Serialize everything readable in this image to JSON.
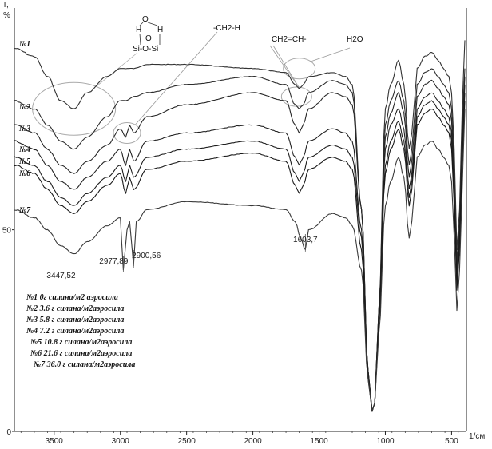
{
  "chart_data": {
    "type": "line",
    "title": "",
    "xlabel": "1/см",
    "ylabel": "T, %",
    "xlim": [
      3800,
      400
    ],
    "ylim": [
      0,
      105
    ],
    "y_ticks": [
      0,
      50
    ],
    "x_ticks": [
      3500,
      3000,
      2500,
      2000,
      1500,
      1000,
      500
    ],
    "grid": false,
    "series": [
      {
        "name": "№1",
        "x": [
          3800,
          3650,
          3550,
          3450,
          3350,
          3250,
          3100,
          3000,
          2960,
          2900,
          2800,
          2500,
          2000,
          1750,
          1680,
          1650,
          1620,
          1580,
          1400,
          1300,
          1250,
          1180,
          1130,
          1100,
          1080,
          1050,
          1000,
          960,
          900,
          860,
          820,
          800,
          780,
          760,
          700,
          650,
          600,
          560,
          520,
          500,
          480,
          460,
          440,
          420,
          400
        ],
        "y": [
          95,
          93,
          88,
          82,
          80,
          84,
          88,
          90,
          90,
          90,
          91,
          91,
          90,
          89,
          86,
          85,
          86,
          88,
          89,
          88,
          86,
          55,
          15,
          5,
          7,
          30,
          80,
          86,
          92,
          86,
          70,
          74,
          82,
          90,
          93,
          94,
          92,
          90,
          88,
          84,
          70,
          45,
          55,
          80,
          97
        ]
      },
      {
        "name": "№2",
        "x": [
          3800,
          3650,
          3550,
          3450,
          3350,
          3250,
          3100,
          3000,
          2960,
          2900,
          2800,
          2500,
          2000,
          1750,
          1680,
          1650,
          1620,
          1580,
          1400,
          1300,
          1250,
          1180,
          1130,
          1100,
          1080,
          1050,
          1000,
          960,
          900,
          860,
          820,
          800,
          780,
          760,
          700,
          650,
          600,
          560,
          520,
          500,
          480,
          460,
          440,
          420,
          400
        ],
        "y": [
          82,
          80,
          76,
          72,
          70,
          73,
          78,
          82,
          82,
          83,
          84,
          86,
          88,
          86,
          81,
          80,
          81,
          84,
          87,
          86,
          84,
          55,
          15,
          5,
          7,
          30,
          76,
          82,
          87,
          82,
          66,
          70,
          78,
          86,
          89,
          90,
          88,
          86,
          84,
          80,
          66,
          42,
          52,
          76,
          90
        ]
      },
      {
        "name": "№3",
        "x": [
          3800,
          3650,
          3550,
          3450,
          3350,
          3250,
          3100,
          3000,
          2960,
          2930,
          2900,
          2800,
          2500,
          2000,
          1750,
          1680,
          1650,
          1620,
          1580,
          1400,
          1300,
          1250,
          1180,
          1130,
          1100,
          1080,
          1050,
          1000,
          960,
          900,
          860,
          820,
          800,
          780,
          760,
          700,
          650,
          600,
          560,
          520,
          500,
          480,
          460,
          440,
          420,
          400
        ],
        "y": [
          76,
          74,
          70,
          66,
          64,
          67,
          71,
          75,
          73,
          76,
          74,
          78,
          81,
          84,
          82,
          76,
          74,
          76,
          80,
          84,
          83,
          81,
          55,
          15,
          5,
          7,
          30,
          73,
          79,
          84,
          79,
          63,
          67,
          75,
          83,
          86,
          87,
          85,
          83,
          81,
          77,
          63,
          40,
          50,
          73,
          88
        ]
      },
      {
        "name": "№4",
        "x": [
          3800,
          3650,
          3550,
          3450,
          3350,
          3250,
          3100,
          3000,
          2960,
          2930,
          2900,
          2800,
          2500,
          2000,
          1750,
          1680,
          1650,
          1620,
          1580,
          1400,
          1300,
          1250,
          1180,
          1130,
          1100,
          1080,
          1050,
          1000,
          960,
          900,
          860,
          820,
          800,
          780,
          760,
          700,
          650,
          600,
          560,
          520,
          500,
          480,
          460,
          440,
          420,
          400
        ],
        "y": [
          72,
          70,
          66,
          62,
          60,
          63,
          67,
          70,
          66,
          70,
          67,
          72,
          74,
          76,
          74,
          68,
          66,
          68,
          72,
          75,
          74,
          72,
          50,
          15,
          5,
          7,
          28,
          70,
          76,
          80,
          75,
          60,
          64,
          72,
          80,
          83,
          84,
          82,
          80,
          78,
          74,
          60,
          38,
          48,
          70,
          86
        ]
      },
      {
        "name": "№5",
        "x": [
          3800,
          3650,
          3550,
          3450,
          3350,
          3250,
          3100,
          3000,
          2960,
          2930,
          2900,
          2800,
          2500,
          2000,
          1750,
          1680,
          1650,
          1620,
          1580,
          1400,
          1300,
          1250,
          1180,
          1130,
          1100,
          1080,
          1050,
          1000,
          960,
          900,
          860,
          820,
          800,
          780,
          760,
          700,
          650,
          600,
          560,
          520,
          500,
          480,
          460,
          440,
          420,
          400
        ],
        "y": [
          68,
          66,
          62,
          58,
          56,
          59,
          63,
          66,
          62,
          66,
          63,
          68,
          70,
          72,
          70,
          64,
          62,
          64,
          68,
          71,
          70,
          68,
          48,
          14,
          5,
          7,
          27,
          66,
          72,
          77,
          72,
          58,
          62,
          70,
          78,
          81,
          82,
          80,
          78,
          76,
          72,
          58,
          36,
          46,
          68,
          84
        ]
      },
      {
        "name": "№6",
        "x": [
          3800,
          3650,
          3550,
          3450,
          3350,
          3250,
          3100,
          3000,
          2960,
          2930,
          2900,
          2800,
          2500,
          2000,
          1750,
          1680,
          1650,
          1620,
          1580,
          1400,
          1300,
          1250,
          1180,
          1130,
          1100,
          1080,
          1050,
          1000,
          960,
          900,
          860,
          820,
          800,
          780,
          760,
          700,
          650,
          600,
          560,
          520,
          500,
          480,
          460,
          440,
          420,
          400
        ],
        "y": [
          66,
          64,
          60,
          56,
          54,
          57,
          61,
          64,
          59,
          63,
          60,
          65,
          67,
          69,
          67,
          61,
          59,
          61,
          65,
          68,
          67,
          65,
          45,
          13,
          5,
          7,
          26,
          64,
          70,
          75,
          70,
          56,
          60,
          68,
          76,
          79,
          80,
          78,
          76,
          74,
          70,
          56,
          35,
          45,
          66,
          82
        ]
      },
      {
        "name": "№7",
        "x": [
          3800,
          3650,
          3550,
          3450,
          3350,
          3250,
          3100,
          3000,
          2977.89,
          2950,
          2930,
          2900.56,
          2880,
          2800,
          2500,
          2000,
          1750,
          1680,
          1640,
          1603.7,
          1580,
          1400,
          1300,
          1250,
          1180,
          1130,
          1100,
          1080,
          1050,
          1000,
          960,
          900,
          860,
          820,
          800,
          780,
          760,
          700,
          650,
          600,
          560,
          520,
          500,
          480,
          460,
          440,
          420,
          400
        ],
        "y": [
          55,
          53,
          50,
          46,
          44,
          47,
          51,
          53,
          40,
          50,
          52,
          41,
          52,
          55,
          57,
          56,
          55,
          52,
          48,
          45,
          50,
          54,
          53,
          51,
          40,
          13,
          5,
          7,
          24,
          56,
          62,
          68,
          63,
          48,
          52,
          60,
          68,
          71,
          72,
          70,
          68,
          66,
          62,
          48,
          30,
          40,
          60,
          80
        ]
      }
    ],
    "peak_labels": [
      {
        "x": 3447.52,
        "y": 44,
        "label": "3447,52"
      },
      {
        "x": 2977.89,
        "y": 40,
        "label": "2977,89"
      },
      {
        "x": 2900.56,
        "y": 41,
        "label": "2900,56"
      },
      {
        "x": 1603.7,
        "y": 45,
        "label": "1603,7"
      }
    ],
    "annotations": [
      {
        "label": "-CH2-H",
        "ring_x": 2950,
        "ring_y": 74
      },
      {
        "label": "CH2=CH-",
        "ring_x": 1670,
        "ring_y": 83
      },
      {
        "label": "H2O",
        "ring_x": 1650,
        "ring_y": 90
      },
      {
        "label": "Si-O-Si",
        "ring_x": 3350,
        "ring_y": 80
      }
    ],
    "structure_labels": {
      "h1": "H",
      "o1": "O",
      "h2": "H",
      "o2": "O",
      "si": "Si-O-Si"
    },
    "legend": [
      "№1 0г силана/м2 аэросила",
      "№2 3.6 г силана/м2аэросила",
      "№3 5.8 г силана/м2аэросила",
      "№4 7.2 г силана/м2аэросила",
      "№5 10.8 г силана/м2аэросила",
      "№6 21.6 г силана/м2аэросила",
      "№7 36.0 г силана/м2аэросила"
    ],
    "legend_position": "bottom-left"
  }
}
